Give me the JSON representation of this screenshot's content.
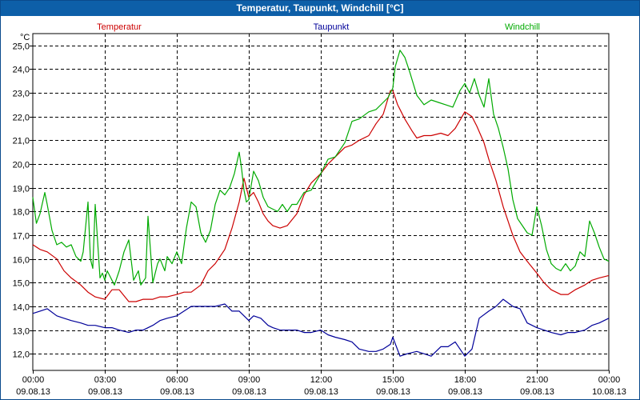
{
  "window": {
    "title": "Temperatur, Taupunkt, Windchill [°C]"
  },
  "chart_data": {
    "type": "line",
    "title": "Temperatur, Taupunkt, Windchill [°C]",
    "ylabel": "°C",
    "ylim": [
      11.3,
      25.5
    ],
    "xlim": [
      0,
      24
    ],
    "grid": true,
    "y_ticks": [
      12.0,
      13.0,
      14.0,
      15.0,
      16.0,
      17.0,
      18.0,
      19.0,
      20.0,
      21.0,
      22.0,
      23.0,
      24.0,
      25.0
    ],
    "y_tick_labels": [
      "12,0",
      "13,0",
      "14,0",
      "15,0",
      "16,0",
      "17,0",
      "18,0",
      "19,0",
      "20,0",
      "21,0",
      "22,0",
      "23,0",
      "24,0",
      "25,0"
    ],
    "x_ticks": [
      {
        "h": 0,
        "time": "00:00",
        "date": "09.08.13"
      },
      {
        "h": 3,
        "time": "03:00",
        "date": "09.08.13"
      },
      {
        "h": 6,
        "time": "06:00",
        "date": "09.08.13"
      },
      {
        "h": 9,
        "time": "09:00",
        "date": "09.08.13"
      },
      {
        "h": 12,
        "time": "12:00",
        "date": "09.08.13"
      },
      {
        "h": 15,
        "time": "15:00",
        "date": "09.08.13"
      },
      {
        "h": 18,
        "time": "18:00",
        "date": "09.08.13"
      },
      {
        "h": 21,
        "time": "21:00",
        "date": "09.08.13"
      },
      {
        "h": 24,
        "time": "00:00",
        "date": "10.08.13"
      }
    ],
    "series": [
      {
        "name": "Temperatur",
        "color": "#cc0000",
        "x": [
          0,
          0.3,
          0.6,
          1,
          1.3,
          1.6,
          2,
          2.3,
          2.6,
          3,
          3.3,
          3.6,
          4,
          4.3,
          4.6,
          5,
          5.3,
          5.6,
          6,
          6.3,
          6.6,
          7,
          7.3,
          7.6,
          8,
          8.3,
          8.6,
          8.8,
          9,
          9.2,
          9.4,
          9.6,
          9.8,
          10,
          10.3,
          10.6,
          11,
          11.3,
          11.6,
          12,
          12.3,
          12.6,
          13,
          13.3,
          13.6,
          14,
          14.3,
          14.6,
          14.9,
          15,
          15.2,
          15.5,
          15.8,
          16,
          16.3,
          16.6,
          17,
          17.3,
          17.6,
          18,
          18.3,
          18.5,
          18.8,
          19,
          19.3,
          19.6,
          20,
          20.3,
          20.6,
          21,
          21.3,
          21.6,
          22,
          22.3,
          22.6,
          23,
          23.3,
          23.6,
          24
        ],
        "values": [
          16.6,
          16.4,
          16.3,
          16.0,
          15.5,
          15.2,
          14.9,
          14.6,
          14.4,
          14.3,
          14.7,
          14.7,
          14.2,
          14.2,
          14.3,
          14.3,
          14.4,
          14.4,
          14.5,
          14.6,
          14.6,
          14.9,
          15.5,
          15.8,
          16.4,
          17.3,
          18.4,
          19.4,
          18.6,
          18.8,
          18.4,
          17.9,
          17.6,
          17.4,
          17.3,
          17.4,
          17.9,
          18.7,
          19.2,
          19.6,
          20.0,
          20.3,
          20.7,
          20.8,
          21.0,
          21.2,
          21.7,
          22.1,
          23.1,
          23.1,
          22.5,
          21.9,
          21.4,
          21.1,
          21.2,
          21.2,
          21.3,
          21.2,
          21.5,
          22.2,
          22.0,
          21.6,
          20.9,
          20.2,
          19.3,
          18.2,
          17.0,
          16.3,
          15.9,
          15.4,
          15.0,
          14.7,
          14.5,
          14.5,
          14.7,
          14.9,
          15.1,
          15.2,
          15.3
        ]
      },
      {
        "name": "Taupunkt",
        "color": "#000099",
        "x": [
          0,
          0.3,
          0.6,
          1,
          1.3,
          1.6,
          2,
          2.3,
          2.6,
          3,
          3.3,
          3.6,
          4,
          4.3,
          4.6,
          5,
          5.3,
          5.6,
          6,
          6.3,
          6.6,
          7,
          7.3,
          7.6,
          8,
          8.3,
          8.6,
          9,
          9.2,
          9.5,
          9.8,
          10,
          10.3,
          10.6,
          11,
          11.3,
          11.6,
          12,
          12.3,
          12.6,
          13,
          13.3,
          13.6,
          14,
          14.3,
          14.6,
          14.9,
          15,
          15.3,
          15.6,
          16,
          16.3,
          16.6,
          17,
          17.3,
          17.6,
          18,
          18.3,
          18.6,
          19,
          19.3,
          19.6,
          20,
          20.3,
          20.6,
          21,
          21.3,
          21.6,
          22,
          22.3,
          22.6,
          23,
          23.3,
          23.6,
          24
        ],
        "values": [
          13.7,
          13.8,
          13.9,
          13.6,
          13.5,
          13.4,
          13.3,
          13.2,
          13.2,
          13.1,
          13.1,
          13.0,
          12.9,
          13.0,
          13.0,
          13.2,
          13.4,
          13.5,
          13.6,
          13.8,
          14.0,
          14.0,
          14.0,
          14.0,
          14.1,
          13.8,
          13.8,
          13.4,
          13.6,
          13.5,
          13.2,
          13.1,
          13.0,
          13.0,
          13.0,
          12.9,
          12.9,
          13.0,
          12.8,
          12.7,
          12.6,
          12.5,
          12.2,
          12.1,
          12.1,
          12.2,
          12.4,
          12.7,
          11.9,
          12.0,
          12.1,
          12.0,
          11.9,
          12.3,
          12.3,
          12.5,
          11.9,
          12.2,
          13.5,
          13.8,
          14.0,
          14.3,
          14.0,
          13.9,
          13.3,
          13.1,
          13.0,
          12.9,
          12.8,
          12.9,
          12.9,
          13.0,
          13.2,
          13.3,
          13.5
        ]
      },
      {
        "name": "Windchill",
        "color": "#00aa00",
        "x": [
          0,
          0.15,
          0.3,
          0.5,
          0.6,
          0.8,
          1,
          1.2,
          1.4,
          1.6,
          1.8,
          2,
          2.1,
          2.3,
          2.4,
          2.5,
          2.6,
          2.8,
          2.9,
          3,
          3.1,
          3.2,
          3.4,
          3.6,
          3.8,
          4,
          4.2,
          4.4,
          4.5,
          4.7,
          4.8,
          5,
          5.2,
          5.3,
          5.5,
          5.6,
          5.8,
          6,
          6.2,
          6.4,
          6.6,
          6.8,
          7,
          7.2,
          7.4,
          7.6,
          7.8,
          8,
          8.2,
          8.4,
          8.6,
          8.7,
          8.8,
          8.9,
          9,
          9.1,
          9.2,
          9.4,
          9.6,
          9.8,
          10,
          10.2,
          10.4,
          10.6,
          10.8,
          11,
          11.3,
          11.6,
          12,
          12.3,
          12.6,
          13,
          13.3,
          13.6,
          14,
          14.3,
          14.6,
          14.8,
          15,
          15.1,
          15.3,
          15.5,
          15.7,
          16,
          16.3,
          16.6,
          16.9,
          17.2,
          17.5,
          17.8,
          18,
          18.2,
          18.4,
          18.6,
          18.8,
          19,
          19.2,
          19.4,
          19.6,
          19.8,
          20,
          20.2,
          20.4,
          20.6,
          20.8,
          21,
          21.2,
          21.4,
          21.6,
          21.8,
          22,
          22.2,
          22.4,
          22.6,
          22.8,
          23,
          23.2,
          23.4,
          23.6,
          23.8,
          24
        ],
        "values": [
          18.6,
          17.5,
          17.9,
          18.8,
          18.3,
          17.2,
          16.6,
          16.7,
          16.5,
          16.6,
          16.1,
          15.9,
          16.3,
          18.4,
          16.0,
          15.6,
          18.3,
          15.2,
          15.4,
          15.1,
          15.5,
          15.3,
          14.9,
          15.5,
          16.3,
          16.8,
          15.1,
          15.5,
          14.9,
          15.2,
          17.8,
          15.0,
          15.8,
          16.0,
          15.5,
          16.1,
          15.8,
          16.3,
          15.8,
          17.3,
          18.4,
          18.2,
          17.1,
          16.7,
          17.2,
          18.3,
          18.9,
          18.7,
          19.0,
          19.6,
          20.5,
          19.8,
          18.9,
          18.4,
          18.5,
          19.1,
          19.7,
          19.3,
          18.6,
          18.2,
          18.1,
          18.0,
          18.3,
          18.0,
          18.3,
          18.3,
          18.8,
          18.9,
          19.6,
          20.2,
          20.3,
          20.9,
          21.8,
          21.9,
          22.2,
          22.3,
          22.6,
          22.8,
          23.2,
          24.1,
          24.8,
          24.5,
          23.9,
          22.9,
          22.5,
          22.7,
          22.6,
          22.5,
          22.4,
          23.1,
          23.4,
          23.0,
          23.6,
          22.9,
          22.4,
          23.6,
          22.1,
          21.5,
          20.7,
          19.8,
          18.5,
          17.7,
          17.4,
          17.1,
          17.0,
          18.2,
          17.4,
          16.4,
          15.8,
          15.6,
          15.5,
          15.8,
          15.5,
          15.7,
          16.3,
          16.1,
          17.6,
          17.1,
          16.5,
          16.0,
          15.9
        ]
      }
    ]
  }
}
